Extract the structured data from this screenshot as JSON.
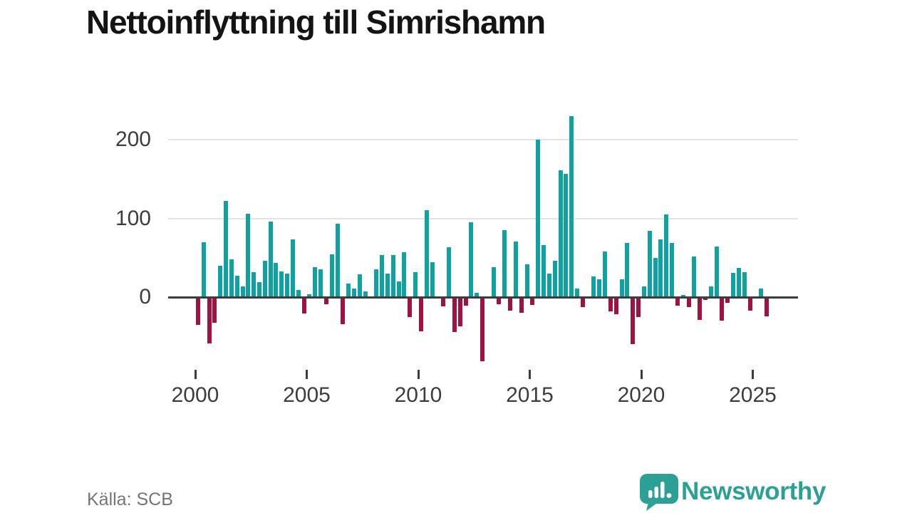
{
  "page": {
    "title": "Nettoinflyttning till Simrishamn",
    "source": "Källa: SCB",
    "brand": "Newsworthy"
  },
  "chart_data": {
    "type": "bar",
    "title": "Nettoinflyttning till Simrishamn",
    "frequency": "quarterly",
    "start_year": 2000,
    "series": [
      {
        "year": 2000,
        "values": [
          -35,
          70,
          -59,
          -33
        ]
      },
      {
        "year": 2001,
        "values": [
          40,
          122,
          48,
          27
        ]
      },
      {
        "year": 2002,
        "values": [
          14,
          106,
          32,
          19
        ]
      },
      {
        "year": 2003,
        "values": [
          46,
          96,
          43,
          33
        ]
      },
      {
        "year": 2004,
        "values": [
          30,
          73,
          9,
          -21
        ]
      },
      {
        "year": 2005,
        "values": [
          4,
          38,
          35,
          -9
        ]
      },
      {
        "year": 2006,
        "values": [
          54,
          93,
          -34,
          17
        ]
      },
      {
        "year": 2007,
        "values": [
          11,
          29,
          7,
          0
        ]
      },
      {
        "year": 2008,
        "values": [
          35,
          53,
          30,
          53
        ]
      },
      {
        "year": 2009,
        "values": [
          20,
          57,
          -25,
          32
        ]
      },
      {
        "year": 2010,
        "values": [
          -43,
          110,
          44,
          0
        ]
      },
      {
        "year": 2011,
        "values": [
          -12,
          63,
          -44,
          -37
        ]
      },
      {
        "year": 2012,
        "values": [
          -11,
          95,
          5,
          -81
        ]
      },
      {
        "year": 2013,
        "values": [
          0,
          38,
          -9,
          85
        ]
      },
      {
        "year": 2014,
        "values": [
          -17,
          71,
          -20,
          42
        ]
      },
      {
        "year": 2015,
        "values": [
          -10,
          200,
          66,
          30
        ]
      },
      {
        "year": 2016,
        "values": [
          46,
          161,
          157,
          230
        ]
      },
      {
        "year": 2017,
        "values": [
          11,
          -13,
          0,
          26
        ]
      },
      {
        "year": 2018,
        "values": [
          23,
          58,
          -18,
          -22
        ]
      },
      {
        "year": 2019,
        "values": [
          23,
          69,
          -60,
          -25
        ]
      },
      {
        "year": 2020,
        "values": [
          14,
          84,
          50,
          73
        ]
      },
      {
        "year": 2021,
        "values": [
          105,
          69,
          -11,
          3
        ]
      },
      {
        "year": 2022,
        "values": [
          -13,
          52,
          -29,
          -4
        ]
      },
      {
        "year": 2023,
        "values": [
          14,
          64,
          -30,
          -7
        ]
      },
      {
        "year": 2024,
        "values": [
          31,
          37,
          32,
          -17
        ]
      },
      {
        "year": 2025,
        "values": [
          0,
          11,
          -24
        ]
      }
    ],
    "yticks": [
      {
        "label": "0",
        "value": 0
      },
      {
        "label": "100",
        "value": 100
      },
      {
        "label": "200",
        "value": 200
      }
    ],
    "xticks": [
      {
        "label": "2000",
        "year": 2000
      },
      {
        "label": "2005",
        "year": 2005
      },
      {
        "label": "2010",
        "year": 2010
      },
      {
        "label": "2015",
        "year": 2015
      },
      {
        "label": "2020",
        "year": 2020
      },
      {
        "label": "2025",
        "year": 2025
      }
    ],
    "ylim": [
      -90,
      240
    ],
    "grid": "horizontal",
    "legend": "none",
    "colors": {
      "positive": "#0fa2a0",
      "negative": "#a11244",
      "gridline": "#e4e4e4",
      "axis": "#3d3d3d",
      "brand_teal": "#2da095"
    }
  }
}
